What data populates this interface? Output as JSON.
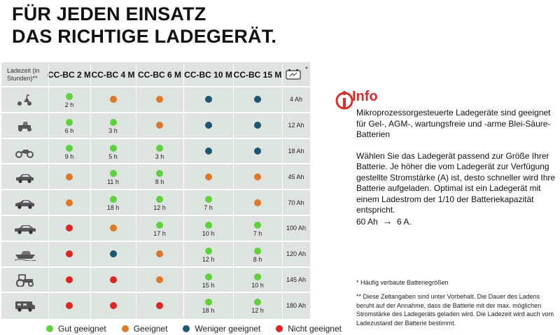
{
  "headline": {
    "line1": "FÜR JEDEN EINSATZ",
    "line2": "DAS RICHTIGE LADEGERÄT."
  },
  "table": {
    "time_header": "Ladezeit (in Stunden)**",
    "columns": [
      "CC-BC 2 M",
      "CC-BC 4 M",
      "CC-BC 6 M",
      "CC-BC 10 M",
      "CC-BC 15 M"
    ],
    "capacity_header_icon": "battery-icon",
    "capacity_header_mark": "*",
    "rows": [
      {
        "vehicle_icon": "scooter-icon",
        "capacity": "4 Ah",
        "cells": [
          {
            "r": "good",
            "t": "2 h"
          },
          {
            "r": "suitable",
            "t": ""
          },
          {
            "r": "suitable",
            "t": ""
          },
          {
            "r": "less",
            "t": ""
          },
          {
            "r": "less",
            "t": ""
          }
        ]
      },
      {
        "vehicle_icon": "lawn-mower-icon",
        "capacity": "12 Ah",
        "cells": [
          {
            "r": "good",
            "t": "6 h"
          },
          {
            "r": "good",
            "t": "3 h"
          },
          {
            "r": "suitable",
            "t": ""
          },
          {
            "r": "less",
            "t": ""
          },
          {
            "r": "less",
            "t": ""
          }
        ]
      },
      {
        "vehicle_icon": "motorcycle-icon",
        "capacity": "18 Ah",
        "cells": [
          {
            "r": "good",
            "t": "9 h"
          },
          {
            "r": "good",
            "t": "5 h"
          },
          {
            "r": "good",
            "t": "3 h"
          },
          {
            "r": "less",
            "t": ""
          },
          {
            "r": "less",
            "t": ""
          }
        ]
      },
      {
        "vehicle_icon": "small-car-icon",
        "capacity": "45 Ah",
        "cells": [
          {
            "r": "suitable",
            "t": ""
          },
          {
            "r": "good",
            "t": "11 h"
          },
          {
            "r": "good",
            "t": "8 h"
          },
          {
            "r": "suitable",
            "t": ""
          },
          {
            "r": "suitable",
            "t": ""
          }
        ]
      },
      {
        "vehicle_icon": "car-icon",
        "capacity": "70 Ah",
        "cells": [
          {
            "r": "suitable",
            "t": ""
          },
          {
            "r": "good",
            "t": "18 h"
          },
          {
            "r": "good",
            "t": "12 h"
          },
          {
            "r": "good",
            "t": "7 h"
          },
          {
            "r": "suitable",
            "t": ""
          }
        ]
      },
      {
        "vehicle_icon": "sedan-icon",
        "capacity": "100 Ah",
        "cells": [
          {
            "r": "none",
            "t": ""
          },
          {
            "r": "suitable",
            "t": ""
          },
          {
            "r": "good",
            "t": "17 h"
          },
          {
            "r": "good",
            "t": "10 h"
          },
          {
            "r": "good",
            "t": "7 h"
          }
        ]
      },
      {
        "vehicle_icon": "boat-icon",
        "capacity": "120 Ah",
        "cells": [
          {
            "r": "none",
            "t": ""
          },
          {
            "r": "less",
            "t": ""
          },
          {
            "r": "suitable",
            "t": ""
          },
          {
            "r": "good",
            "t": "12 h"
          },
          {
            "r": "good",
            "t": "8 h"
          }
        ]
      },
      {
        "vehicle_icon": "tractor-icon",
        "capacity": "145 Ah",
        "cells": [
          {
            "r": "none",
            "t": ""
          },
          {
            "r": "none",
            "t": ""
          },
          {
            "r": "suitable",
            "t": ""
          },
          {
            "r": "good",
            "t": "15 h"
          },
          {
            "r": "good",
            "t": "10 h"
          }
        ]
      },
      {
        "vehicle_icon": "camper-icon",
        "capacity": "180 Ah",
        "cells": [
          {
            "r": "none",
            "t": ""
          },
          {
            "r": "none",
            "t": ""
          },
          {
            "r": "none",
            "t": ""
          },
          {
            "r": "good",
            "t": "18 h"
          },
          {
            "r": "good",
            "t": "12 h"
          }
        ]
      }
    ]
  },
  "ratings": {
    "good": {
      "label": "Gut geeignet",
      "color": "#5ed13b"
    },
    "suitable": {
      "label": "Geeignet",
      "color": "#e0782a"
    },
    "less": {
      "label": "Weniger geeignet",
      "color": "#1f5672"
    },
    "none": {
      "label": "Nicht geeignet",
      "color": "#df2424"
    }
  },
  "legend_order": [
    "good",
    "suitable",
    "less",
    "none"
  ],
  "info": {
    "icon": "info-icon",
    "title": "Info",
    "lead": "Mikroprozessorgesteuerte Ladegeräte sind geeignet für Gel-, AGM-, wartungsfreie und -arme Blei-Säure-Batterien",
    "body": "Wählen Sie das Ladegerät passend zur Größe Ihrer Batterie. Je höher die vom Ladegerät zur Verfügung gestellte Stromstärke (A) ist, desto schneller wird Ihre Batterie aufgeladen. Optimal ist ein Ladegerät mit einem Ladestrom der 1/10 der Batteriekapazität entspricht.",
    "example_left": "60 Ah",
    "example_arrow": "→",
    "example_right": "6 A.",
    "accent_color": "#e12b2b"
  },
  "footnotes": {
    "star": "* Häufig verbaute Batteriegrößen",
    "double_star": "** Diese Zeitangaben sind unter Vorbehalt. Die Dauer des Ladens beruht auf der Annahme, dass die Batterie mit der max. möglichen Stromstärke des Ladegeräts geladen wird. Die Ladezeit wird auch vom Ladezustand der Batterie bestimmt."
  }
}
